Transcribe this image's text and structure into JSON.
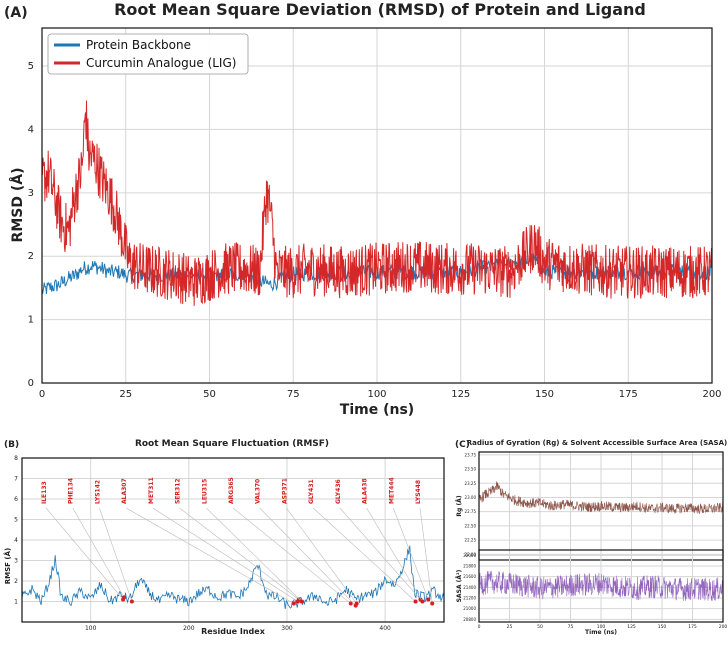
{
  "panel_a": {
    "letter": "(A)",
    "chart_data": {
      "type": "line",
      "title": "Root Mean Square Deviation (RMSD) of Protein and Ligand",
      "xlabel": "Time (ns)",
      "ylabel": "RMSD (Å)",
      "xlim": [
        0,
        200
      ],
      "ylim": [
        0,
        5.6
      ],
      "xticks": [
        0,
        25,
        50,
        75,
        100,
        125,
        150,
        175,
        200
      ],
      "yticks": [
        0,
        1,
        2,
        3,
        4,
        5
      ],
      "grid": true,
      "legend_position": "top-left",
      "series": [
        {
          "name": "Protein Backbone",
          "color": "#1f77b4",
          "x": [
            0,
            2,
            5,
            8,
            10,
            12,
            15,
            18,
            20,
            23,
            25,
            30,
            40,
            50,
            60,
            68,
            75,
            100,
            125,
            147,
            150,
            175,
            200
          ],
          "y": [
            1.45,
            1.5,
            1.55,
            1.65,
            1.7,
            1.8,
            1.85,
            1.8,
            1.75,
            1.75,
            1.7,
            1.7,
            1.7,
            1.7,
            1.72,
            1.55,
            1.72,
            1.75,
            1.75,
            1.95,
            1.75,
            1.75,
            1.75
          ]
        },
        {
          "name": "Curcumin Analogue (LIG)",
          "color": "#d62728",
          "x": [
            0,
            2,
            4,
            6,
            8,
            10,
            12,
            13,
            14,
            16,
            18,
            20,
            22,
            24,
            26,
            30,
            35,
            40,
            45,
            50,
            55,
            60,
            65,
            67,
            68,
            70,
            75,
            80,
            90,
            100,
            110,
            120,
            130,
            140,
            147,
            150,
            160,
            170,
            180,
            190,
            200
          ],
          "y": [
            3.2,
            3.3,
            2.9,
            2.5,
            2.4,
            3.0,
            3.4,
            4.3,
            3.6,
            3.5,
            3.2,
            3.0,
            2.7,
            2.3,
            1.9,
            1.8,
            1.75,
            1.7,
            1.6,
            1.7,
            1.8,
            1.8,
            1.75,
            3.0,
            2.8,
            1.75,
            1.75,
            1.8,
            1.75,
            1.8,
            1.85,
            1.8,
            1.8,
            1.75,
            2.2,
            1.9,
            1.8,
            1.75,
            1.75,
            1.75,
            1.75
          ]
        }
      ]
    }
  },
  "panel_b": {
    "letter": "(B)",
    "chart_data": {
      "type": "line",
      "title": "Root Mean Square Fluctuation (RMSF)",
      "xlabel": "Residue Index",
      "ylabel": "RMSF (Å)",
      "xlim": [
        30,
        460
      ],
      "ylim": [
        0,
        8
      ],
      "xticks": [
        100,
        200,
        300,
        400
      ],
      "yticks": [
        1,
        2,
        3,
        4,
        5,
        6,
        7,
        8
      ],
      "grid": true,
      "series": [
        {
          "color": "#1f77b4",
          "x": [
            30,
            40,
            50,
            58,
            64,
            70,
            80,
            90,
            100,
            110,
            120,
            130,
            140,
            150,
            160,
            170,
            180,
            190,
            200,
            210,
            220,
            230,
            240,
            250,
            260,
            270,
            280,
            290,
            300,
            310,
            320,
            330,
            340,
            350,
            360,
            370,
            380,
            390,
            400,
            410,
            420,
            425,
            430,
            440,
            450,
            460
          ],
          "y": [
            1.2,
            1.6,
            1.0,
            2.0,
            3.1,
            1.2,
            1.0,
            1.5,
            1.1,
            1.8,
            1.0,
            1.3,
            1.1,
            2.1,
            1.4,
            1.0,
            1.3,
            1.1,
            1.0,
            1.4,
            1.6,
            1.2,
            1.4,
            1.2,
            1.7,
            2.8,
            1.3,
            1.2,
            0.8,
            0.9,
            1.1,
            1.3,
            0.9,
            1.1,
            1.6,
            1.1,
            1.3,
            1.4,
            2.1,
            1.8,
            2.9,
            3.6,
            1.4,
            1.2,
            1.5,
            1.1
          ]
        }
      ],
      "annotations": [
        {
          "label": "ILE133",
          "residue": 133,
          "value": 1.1
        },
        {
          "label": "PHE134",
          "residue": 134,
          "value": 1.2
        },
        {
          "label": "LYS142",
          "residue": 142,
          "value": 1.0
        },
        {
          "label": "ALA307",
          "residue": 307,
          "value": 0.9
        },
        {
          "label": "MET311",
          "residue": 311,
          "value": 1.0
        },
        {
          "label": "SER312",
          "residue": 312,
          "value": 1.1
        },
        {
          "label": "LEU315",
          "residue": 315,
          "value": 1.0
        },
        {
          "label": "ARG365",
          "residue": 365,
          "value": 0.9
        },
        {
          "label": "VAL370",
          "residue": 370,
          "value": 0.8
        },
        {
          "label": "ASP371",
          "residue": 371,
          "value": 0.9
        },
        {
          "label": "GLY431",
          "residue": 431,
          "value": 1.0
        },
        {
          "label": "GLY436",
          "residue": 436,
          "value": 1.1
        },
        {
          "label": "ALA438",
          "residue": 438,
          "value": 1.0
        },
        {
          "label": "MET444",
          "residue": 444,
          "value": 1.1
        },
        {
          "label": "LYS448",
          "residue": 448,
          "value": 0.9
        }
      ]
    }
  },
  "panel_c": {
    "letter": "(C)",
    "title": "Radius of Gyration (Rg) & Solvent Accessible Surface Area (SASA)",
    "xlabel": "Time (ns)",
    "xticks": [
      0,
      25,
      50,
      75,
      100,
      125,
      150,
      175,
      200
    ],
    "chart_data": [
      {
        "type": "line",
        "ylabel": "Rg (Å)",
        "yticks": [
          "22.00",
          "22.25",
          "22.50",
          "22.75",
          "23.00",
          "23.25",
          "23.50",
          "23.75"
        ],
        "ylim": [
          21.9,
          23.8
        ],
        "xlim": [
          0,
          200
        ],
        "series": [
          {
            "color": "#8c564b",
            "x": [
              0,
              5,
              10,
              15,
              20,
              30,
              40,
              50,
              60,
              70,
              80,
              90,
              100,
              110,
              120,
              130,
              140,
              150,
              160,
              170,
              180,
              190,
              200
            ],
            "y": [
              22.95,
              23.05,
              23.1,
              23.2,
              23.05,
              22.95,
              22.9,
              22.9,
              22.85,
              22.88,
              22.85,
              22.83,
              22.85,
              22.83,
              22.82,
              22.85,
              22.8,
              22.82,
              22.8,
              22.82,
              22.8,
              22.8,
              22.82
            ]
          }
        ]
      },
      {
        "type": "line",
        "ylabel": "SASA (Å²)",
        "yticks": [
          "20800",
          "21000",
          "21200",
          "21400",
          "21600",
          "21800",
          "22000"
        ],
        "ylim": [
          20750,
          22100
        ],
        "xlim": [
          0,
          200
        ],
        "series": [
          {
            "color": "#9467bd",
            "x": [
              0,
              10,
              20,
              30,
              40,
              50,
              60,
              70,
              80,
              90,
              100,
              110,
              120,
              130,
              140,
              150,
              160,
              170,
              180,
              190,
              200
            ],
            "y": [
              21450,
              21500,
              21480,
              21450,
              21420,
              21380,
              21400,
              21420,
              21450,
              21450,
              21480,
              21430,
              21400,
              21380,
              21420,
              21400,
              21380,
              21360,
              21380,
              21350,
              21380
            ]
          }
        ]
      }
    ]
  },
  "colors": {
    "protein": "#1f77b4",
    "ligand": "#d62728",
    "rg": "#8c564b",
    "sasa": "#9467bd",
    "residue_label": "#d62020"
  }
}
